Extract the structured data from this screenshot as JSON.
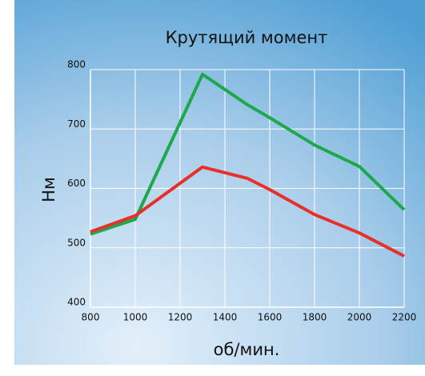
{
  "chart_data": {
    "type": "line",
    "title": "Крутящий момент",
    "xlabel": "об/мин.",
    "ylabel": "Нм",
    "x": [
      800,
      1000,
      1300,
      1500,
      1600,
      1800,
      2000,
      2200
    ],
    "series": [
      {
        "color": "#1ca84b",
        "values": [
          523,
          548,
          792,
          741,
          719,
          673,
          637,
          564
        ]
      },
      {
        "color": "#e8302a",
        "values": [
          527,
          554,
          636,
          617,
          598,
          556,
          525,
          486
        ]
      }
    ],
    "xlim": [
      800,
      2200
    ],
    "xticks": [
      800,
      1000,
      1200,
      1400,
      1600,
      1800,
      2000,
      2200
    ],
    "ylim": [
      400,
      800
    ],
    "yticks": [
      400,
      500,
      600,
      700,
      800
    ],
    "grid": true
  }
}
